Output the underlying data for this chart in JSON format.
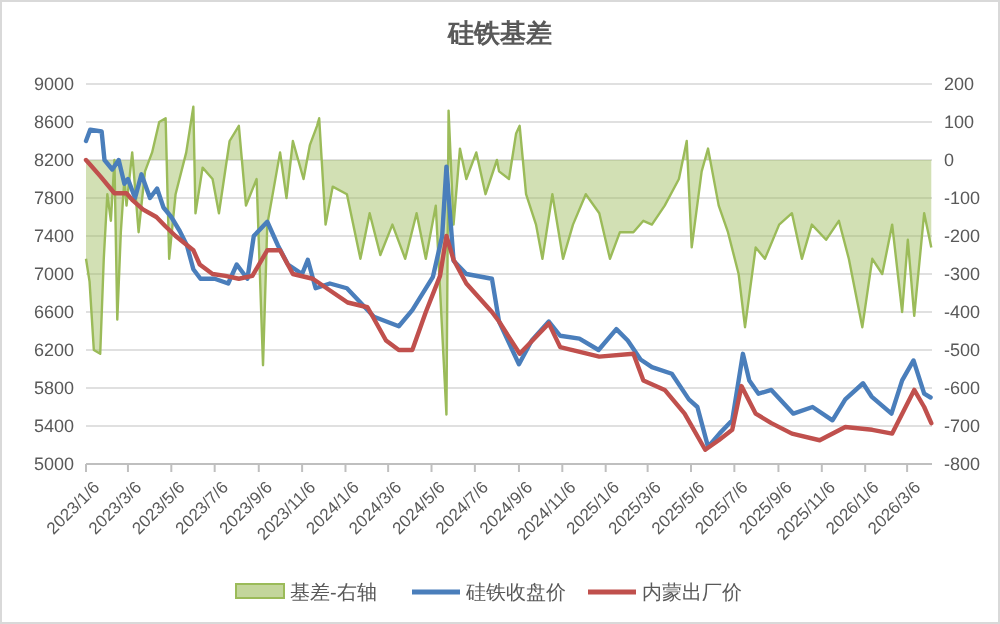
{
  "chart_data": {
    "type": "line",
    "title": "硅铁基差",
    "legend": "bottom",
    "grid": "y",
    "xlim": [
      "2023-01-06",
      "2026-04-10"
    ],
    "xticks": [
      {
        "value": "2023-01-06",
        "label": "2023/1/6"
      },
      {
        "value": "2023-03-06",
        "label": "2023/3/6"
      },
      {
        "value": "2023-05-06",
        "label": "2023/5/6"
      },
      {
        "value": "2023-07-06",
        "label": "2023/7/6"
      },
      {
        "value": "2023-09-06",
        "label": "2023/9/6"
      },
      {
        "value": "2023-11-06",
        "label": "2023/11/6"
      },
      {
        "value": "2024-01-06",
        "label": "2024/1/6"
      },
      {
        "value": "2024-03-06",
        "label": "2024/3/6"
      },
      {
        "value": "2024-05-06",
        "label": "2024/5/6"
      },
      {
        "value": "2024-07-06",
        "label": "2024/7/6"
      },
      {
        "value": "2024-09-06",
        "label": "2024/9/6"
      },
      {
        "value": "2024-11-06",
        "label": "2024/11/6"
      },
      {
        "value": "2025-01-06",
        "label": "2025/1/6"
      },
      {
        "value": "2025-03-06",
        "label": "2025/3/6"
      },
      {
        "value": "2025-05-06",
        "label": "2025/5/6"
      },
      {
        "value": "2025-07-06",
        "label": "2025/7/6"
      },
      {
        "value": "2025-09-06",
        "label": "2025/9/6"
      },
      {
        "value": "2025-11-06",
        "label": "2025/11/6"
      },
      {
        "value": "2026-01-06",
        "label": "2026/1/6"
      },
      {
        "value": "2026-03-06",
        "label": "2026/3/6"
      }
    ],
    "ylim": [
      5000,
      9000
    ],
    "yticks": [
      5000,
      5400,
      5800,
      6200,
      6600,
      7000,
      7400,
      7800,
      8200,
      8600,
      9000
    ],
    "y2lim": [
      -800,
      200
    ],
    "y2ticks": [
      -800,
      -700,
      -600,
      -500,
      -400,
      -300,
      -200,
      -100,
      0,
      100,
      200
    ],
    "series": [
      {
        "name": "基差-右轴",
        "type": "area",
        "axis": "y2",
        "color": "#9bbb59",
        "x": [
          "2023-01-06",
          "2023-01-11",
          "2023-01-17",
          "2023-01-26",
          "2023-01-31",
          "2023-02-05",
          "2023-02-10",
          "2023-02-15",
          "2023-02-19",
          "2023-02-24",
          "2023-03-01",
          "2023-03-04",
          "2023-03-12",
          "2023-03-21",
          "2023-03-30",
          "2023-04-09",
          "2023-04-19",
          "2023-04-28",
          "2023-05-03",
          "2023-05-12",
          "2023-05-27",
          "2023-06-06",
          "2023-06-09",
          "2023-06-19",
          "2023-07-03",
          "2023-07-12",
          "2023-07-27",
          "2023-08-09",
          "2023-08-19",
          "2023-09-03",
          "2023-09-12",
          "2023-09-18",
          "2023-10-06",
          "2023-10-15",
          "2023-10-24",
          "2023-11-08",
          "2023-11-17",
          "2023-11-27",
          "2023-11-30",
          "2023-12-09",
          "2023-12-19",
          "2024-01-08",
          "2024-01-27",
          "2024-02-09",
          "2024-02-24",
          "2024-03-12",
          "2024-03-30",
          "2024-04-15",
          "2024-04-28",
          "2024-05-12",
          "2024-05-27",
          "2024-05-30",
          "2024-06-06",
          "2024-06-15",
          "2024-06-24",
          "2024-07-08",
          "2024-07-21",
          "2024-08-06",
          "2024-08-09",
          "2024-08-23",
          "2024-09-02",
          "2024-09-07",
          "2024-09-16",
          "2024-09-30",
          "2024-10-09",
          "2024-10-23",
          "2024-11-07",
          "2024-11-21",
          "2024-12-09",
          "2024-12-28",
          "2025-01-12",
          "2025-01-26",
          "2025-02-14",
          "2025-02-28",
          "2025-03-12",
          "2025-03-30",
          "2025-04-19",
          "2025-04-30",
          "2025-05-07",
          "2025-05-21",
          "2025-05-30",
          "2025-06-14",
          "2025-06-27",
          "2025-07-12",
          "2025-07-21",
          "2025-08-05",
          "2025-08-18",
          "2025-09-07",
          "2025-09-25",
          "2025-10-09",
          "2025-10-23",
          "2025-11-12",
          "2025-11-30",
          "2025-12-14",
          "2026-01-02",
          "2026-01-16",
          "2026-01-30",
          "2026-02-13",
          "2026-02-27",
          "2026-03-07",
          "2026-03-16",
          "2026-03-30",
          "2026-04-09"
        ],
        "values": [
          -260,
          -320,
          -500,
          -510,
          -260,
          -90,
          -160,
          0,
          -420,
          -190,
          -50,
          -120,
          20,
          -190,
          -30,
          20,
          100,
          110,
          -260,
          -90,
          20,
          140,
          -140,
          -20,
          -50,
          -140,
          50,
          90,
          -120,
          -50,
          -540,
          -170,
          20,
          -100,
          50,
          -50,
          40,
          90,
          110,
          -170,
          -70,
          -90,
          -260,
          -140,
          -250,
          -170,
          -260,
          -140,
          -260,
          -120,
          -670,
          130,
          -170,
          30,
          -50,
          20,
          -90,
          0,
          -30,
          -50,
          70,
          90,
          -90,
          -170,
          -260,
          -90,
          -260,
          -170,
          -90,
          -140,
          -260,
          -190,
          -190,
          -160,
          -170,
          -120,
          -50,
          50,
          -230,
          -30,
          30,
          -120,
          -190,
          -300,
          -440,
          -230,
          -260,
          -170,
          -140,
          -260,
          -170,
          -210,
          -160,
          -260,
          -440,
          -260,
          -300,
          -170,
          -400,
          -210,
          -410,
          -140,
          -230
        ]
      },
      {
        "name": "硅铁收盘价",
        "color": "#4a7ebb",
        "x": [
          "2023-01-06",
          "2023-01-12",
          "2023-01-28",
          "2023-02-01",
          "2023-02-12",
          "2023-02-21",
          "2023-03-01",
          "2023-03-06",
          "2023-03-16",
          "2023-03-25",
          "2023-04-06",
          "2023-04-16",
          "2023-04-25",
          "2023-05-06",
          "2023-05-18",
          "2023-05-28",
          "2023-06-06",
          "2023-06-16",
          "2023-07-06",
          "2023-07-25",
          "2023-08-06",
          "2023-08-21",
          "2023-08-30",
          "2023-09-18",
          "2023-10-03",
          "2023-10-17",
          "2023-11-06",
          "2023-11-14",
          "2023-11-25",
          "2023-12-15",
          "2024-01-08",
          "2024-02-15",
          "2024-03-21",
          "2024-04-09",
          "2024-05-08",
          "2024-05-21",
          "2024-05-27",
          "2024-06-06",
          "2024-06-24",
          "2024-07-30",
          "2024-08-09",
          "2024-09-06",
          "2024-09-24",
          "2024-10-18",
          "2024-11-03",
          "2024-11-30",
          "2024-12-27",
          "2025-01-21",
          "2025-02-06",
          "2025-02-24",
          "2025-03-12",
          "2025-04-09",
          "2025-05-03",
          "2025-05-15",
          "2025-05-30",
          "2025-06-15",
          "2025-07-03",
          "2025-07-18",
          "2025-07-27",
          "2025-08-09",
          "2025-08-27",
          "2025-09-27",
          "2025-10-24",
          "2025-11-21",
          "2025-12-09",
          "2026-01-03",
          "2026-01-15",
          "2026-02-12",
          "2026-02-27",
          "2026-03-15",
          "2026-03-30",
          "2026-04-08"
        ],
        "values": [
          8400,
          8520,
          8500,
          8200,
          8100,
          8200,
          7950,
          8000,
          7800,
          8050,
          7800,
          7900,
          7700,
          7600,
          7450,
          7300,
          7050,
          6950,
          6950,
          6900,
          7100,
          6950,
          7400,
          7550,
          7300,
          7100,
          7000,
          7150,
          6850,
          6900,
          6850,
          6550,
          6450,
          6620,
          6970,
          7400,
          8130,
          7140,
          7000,
          6950,
          6500,
          6050,
          6300,
          6500,
          6350,
          6320,
          6200,
          6420,
          6300,
          6100,
          6020,
          5950,
          5680,
          5600,
          5180,
          5320,
          5460,
          6160,
          5880,
          5740,
          5780,
          5530,
          5600,
          5460,
          5680,
          5850,
          5710,
          5530,
          5880,
          6090,
          5740,
          5700
        ]
      },
      {
        "name": "内蒙出厂价",
        "color": "#c0504d",
        "x": [
          "2023-01-06",
          "2023-01-12",
          "2023-01-26",
          "2023-02-15",
          "2023-03-04",
          "2023-03-12",
          "2023-03-27",
          "2023-04-15",
          "2023-04-28",
          "2023-05-12",
          "2023-06-06",
          "2023-06-15",
          "2023-07-03",
          "2023-07-21",
          "2023-08-09",
          "2023-08-28",
          "2023-09-18",
          "2023-10-06",
          "2023-10-24",
          "2023-11-21",
          "2024-01-09",
          "2024-02-06",
          "2024-03-03",
          "2024-03-21",
          "2024-04-09",
          "2024-04-28",
          "2024-05-18",
          "2024-05-27",
          "2024-06-06",
          "2024-06-24",
          "2024-07-30",
          "2024-08-09",
          "2024-09-07",
          "2024-09-25",
          "2024-10-18",
          "2024-11-03",
          "2024-12-28",
          "2025-02-14",
          "2025-02-28",
          "2025-03-30",
          "2025-04-27",
          "2025-05-26",
          "2025-06-14",
          "2025-07-03",
          "2025-07-16",
          "2025-08-05",
          "2025-08-27",
          "2025-09-25",
          "2025-11-03",
          "2025-12-09",
          "2026-01-16",
          "2026-02-13",
          "2026-03-16",
          "2026-03-30",
          "2026-04-09"
        ],
        "values": [
          8200,
          8150,
          8030,
          7850,
          7850,
          7780,
          7680,
          7600,
          7500,
          7400,
          7250,
          7100,
          7000,
          6980,
          6950,
          6980,
          7250,
          7250,
          7000,
          6950,
          6700,
          6650,
          6300,
          6200,
          6200,
          6600,
          6980,
          7400,
          7150,
          6900,
          6600,
          6500,
          6160,
          6300,
          6480,
          6230,
          6130,
          6160,
          5880,
          5780,
          5530,
          5150,
          5250,
          5360,
          5820,
          5530,
          5430,
          5320,
          5250,
          5390,
          5360,
          5320,
          5780,
          5600,
          5430
        ]
      }
    ]
  }
}
